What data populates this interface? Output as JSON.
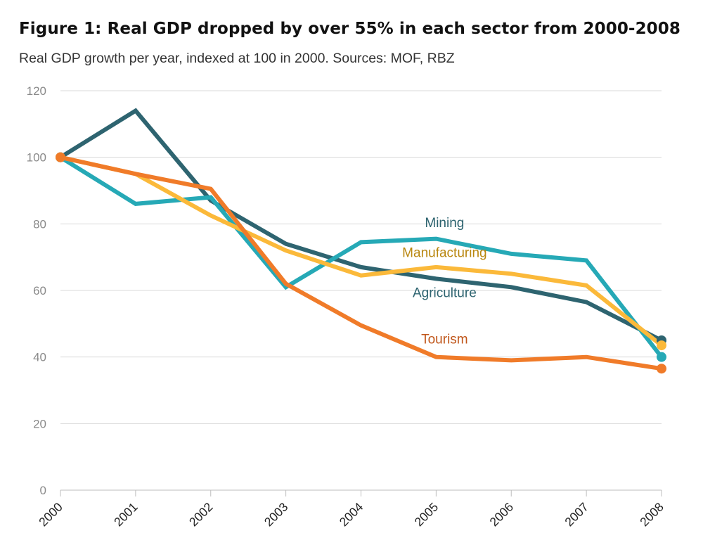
{
  "chart_data": {
    "type": "line",
    "title": "Figure 1: Real GDP dropped by over 55% in each sector from 2000-2008",
    "subtitle": "Real GDP growth per year, indexed at 100 in 2000.   Sources: MOF, RBZ",
    "xlabel": "",
    "ylabel": "",
    "x": [
      "2000",
      "2001",
      "2002",
      "2003",
      "2004",
      "2005",
      "2006",
      "2007",
      "2008"
    ],
    "ylim": [
      0,
      120
    ],
    "yticks": [
      "0",
      "20",
      "40",
      "60",
      "80",
      "100",
      "120"
    ],
    "grid": true,
    "legend": "none",
    "series": [
      {
        "name": "Agriculture",
        "color": "#2e6470",
        "values": [
          100,
          114,
          87,
          74,
          67,
          63.5,
          61,
          56.5,
          45
        ]
      },
      {
        "name": "Mining",
        "color": "#26a9b6",
        "values": [
          100,
          86,
          88,
          61,
          74.5,
          75.5,
          71,
          69,
          40
        ]
      },
      {
        "name": "Manufacturing",
        "color": "#fbb93a",
        "values": [
          100,
          95,
          82.5,
          72,
          64.5,
          67,
          65,
          61.5,
          43.5
        ]
      },
      {
        "name": "Tourism",
        "color": "#f07b29",
        "values": [
          100,
          95,
          90.5,
          62,
          49.5,
          40,
          39,
          40,
          36.5
        ]
      }
    ],
    "label_colors": {
      "Agriculture": "#2e6470",
      "Mining": "#2e6470",
      "Manufacturing": "#b9870f",
      "Tourism": "#c0561a"
    }
  }
}
